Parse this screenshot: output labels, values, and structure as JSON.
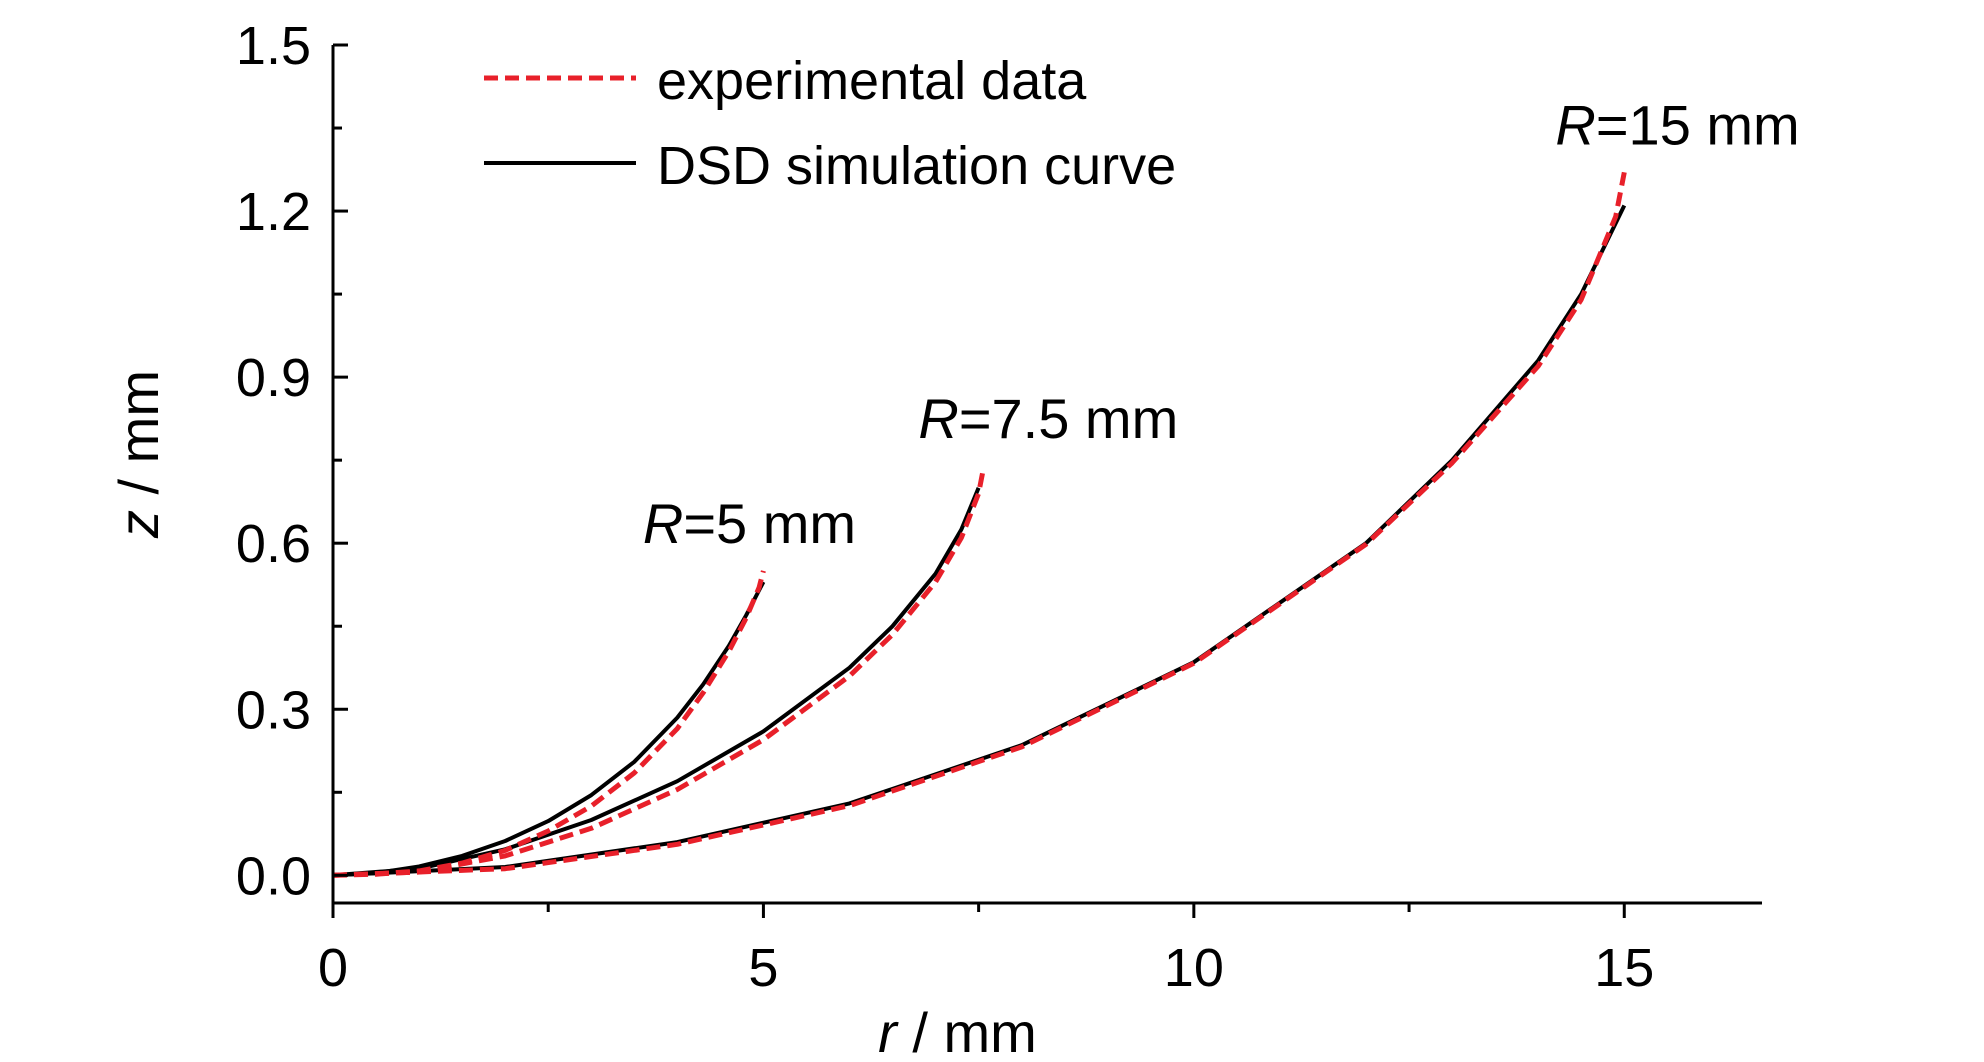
{
  "chart_data": {
    "type": "line",
    "xlabel": {
      "var": "r",
      "unit": " / mm"
    },
    "ylabel": {
      "var": "z",
      "unit": " / mm"
    },
    "xlim": [
      0,
      16.6
    ],
    "ylim": [
      -0.05,
      1.5
    ],
    "xticks": [
      0,
      5,
      10,
      15
    ],
    "xtick_labels": [
      "0",
      "5",
      "10",
      "15"
    ],
    "yticks": [
      0.0,
      0.3,
      0.6,
      0.9,
      1.2,
      1.5
    ],
    "ytick_labels": [
      "0.0",
      "0.3",
      "0.6",
      "0.9",
      "1.2",
      "1.5"
    ],
    "grid": false,
    "legend": {
      "position": "top-left",
      "entries": [
        {
          "label": "experimental data",
          "color": "#e8202a",
          "style": "dashed"
        },
        {
          "label": "DSD simulation curve",
          "color": "#000000",
          "style": "solid"
        }
      ]
    },
    "annotations": [
      {
        "var": "R",
        "text": "=5 mm",
        "x": 3.6,
        "y": 0.6
      },
      {
        "var": "R",
        "text": "=7.5 mm",
        "x": 6.8,
        "y": 0.79
      },
      {
        "var": "R",
        "text": "=15 mm",
        "x": 14.2,
        "y": 1.32
      }
    ],
    "series": [
      {
        "group": "R=5 mm",
        "kind": "simulation",
        "x": [
          0,
          0.5,
          1.0,
          1.5,
          2.0,
          2.5,
          3.0,
          3.5,
          4.0,
          4.3,
          4.6,
          4.8,
          5.0
        ],
        "y": [
          0,
          0.004,
          0.016,
          0.035,
          0.062,
          0.098,
          0.145,
          0.205,
          0.285,
          0.345,
          0.415,
          0.47,
          0.53
        ]
      },
      {
        "group": "R=5 mm",
        "kind": "experimental",
        "x": [
          0,
          0.5,
          1.0,
          1.5,
          2.0,
          2.5,
          3.0,
          3.5,
          4.0,
          4.3,
          4.6,
          4.8,
          4.95,
          5.0
        ],
        "y": [
          0,
          0.002,
          0.008,
          0.022,
          0.045,
          0.08,
          0.125,
          0.185,
          0.265,
          0.33,
          0.405,
          0.465,
          0.52,
          0.55
        ]
      },
      {
        "group": "R=7.5 mm",
        "kind": "simulation",
        "x": [
          0,
          1.0,
          2.0,
          3.0,
          4.0,
          5.0,
          6.0,
          6.5,
          7.0,
          7.3,
          7.5
        ],
        "y": [
          0,
          0.012,
          0.047,
          0.1,
          0.17,
          0.26,
          0.375,
          0.45,
          0.545,
          0.625,
          0.7
        ]
      },
      {
        "group": "R=7.5 mm",
        "kind": "experimental",
        "x": [
          0,
          1.0,
          2.0,
          3.0,
          4.0,
          5.0,
          6.0,
          6.5,
          7.0,
          7.3,
          7.5,
          7.55
        ],
        "y": [
          0,
          0.006,
          0.035,
          0.085,
          0.155,
          0.245,
          0.36,
          0.435,
          0.53,
          0.61,
          0.69,
          0.73
        ]
      },
      {
        "group": "R=15 mm",
        "kind": "simulation",
        "x": [
          0,
          2,
          4,
          6,
          8,
          10,
          12,
          13,
          14,
          14.5,
          15
        ],
        "y": [
          0,
          0.015,
          0.06,
          0.13,
          0.235,
          0.385,
          0.6,
          0.75,
          0.93,
          1.05,
          1.21
        ]
      },
      {
        "group": "R=15 mm",
        "kind": "experimental",
        "x": [
          0,
          2,
          4,
          6,
          8,
          10,
          12,
          13,
          14,
          14.5,
          14.9,
          15
        ],
        "y": [
          0,
          0.012,
          0.056,
          0.126,
          0.232,
          0.383,
          0.598,
          0.745,
          0.92,
          1.04,
          1.19,
          1.27
        ]
      }
    ]
  }
}
